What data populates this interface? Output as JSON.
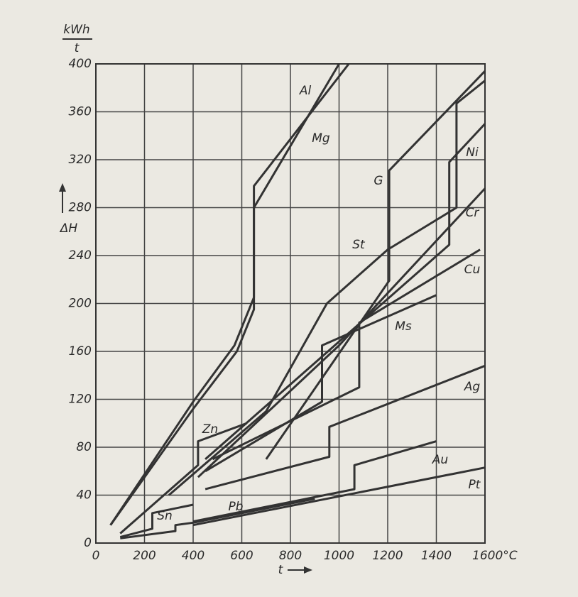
{
  "chart_data": {
    "type": "line",
    "y_unit_numerator": "kWh",
    "y_unit_denominator": "t",
    "y_label": "ΔH",
    "x_label": "t",
    "xlim": [
      0,
      1600
    ],
    "ylim": [
      0,
      400
    ],
    "xticks": [
      0,
      200,
      400,
      600,
      800,
      1000,
      1200,
      1400,
      {
        "value": 1600,
        "label": "1600°C"
      }
    ],
    "yticks": [
      0,
      40,
      80,
      120,
      160,
      200,
      240,
      280,
      320,
      360,
      400
    ],
    "grid": true,
    "series": [
      {
        "name": "Al",
        "color": "#333333",
        "x": [
          60,
          400,
          570,
          650,
          650,
          1000
        ],
        "values": [
          15,
          118,
          165,
          205,
          280,
          400
        ]
      },
      {
        "name": "Mg",
        "color": "#333333",
        "x": [
          60,
          400,
          580,
          650,
          650,
          1040
        ],
        "values": [
          15,
          112,
          160,
          195,
          298,
          400
        ]
      },
      {
        "name": "G",
        "color": "#333333",
        "x": [
          700,
          1206,
          1206,
          1600
        ],
        "values": [
          70,
          219,
          311,
          394
        ]
      },
      {
        "name": "Ni",
        "color": "#333333",
        "x": [
          450,
          1453,
          1453,
          1600
        ],
        "values": [
          70,
          249,
          318,
          350
        ]
      },
      {
        "name": "St",
        "color": "#333333",
        "x": [
          300,
          700,
          950,
          1200,
          1483,
          1483,
          1600
        ],
        "values": [
          40,
          110,
          200,
          245,
          280,
          367,
          386
        ]
      },
      {
        "name": "Cr",
        "color": "#333333",
        "x": [
          420,
          1000,
          1600
        ],
        "values": [
          55,
          165,
          296
        ]
      },
      {
        "name": "Cu",
        "color": "#333333",
        "x": [
          480,
          1083,
          1083,
          1580
        ],
        "values": [
          70,
          130,
          184,
          245
        ]
      },
      {
        "name": "Ms",
        "color": "#333333",
        "x": [
          450,
          930,
          930,
          1400
        ],
        "values": [
          60,
          118,
          165,
          207
        ]
      },
      {
        "name": "Zn",
        "color": "#333333",
        "x": [
          100,
          420,
          420,
          620
        ],
        "values": [
          8,
          65,
          85,
          100
        ]
      },
      {
        "name": "Ag",
        "color": "#333333",
        "x": [
          450,
          960,
          960,
          1600
        ],
        "values": [
          45,
          72,
          97,
          148
        ]
      },
      {
        "name": "Au",
        "color": "#333333",
        "x": [
          400,
          1063,
          1063,
          1400
        ],
        "values": [
          18,
          45,
          65,
          85
        ]
      },
      {
        "name": "Sn",
        "color": "#333333",
        "x": [
          100,
          232,
          232,
          400
        ],
        "values": [
          5,
          12,
          25,
          32
        ]
      },
      {
        "name": "Pb",
        "color": "#333333",
        "x": [
          100,
          327,
          327,
          400,
          900
        ],
        "values": [
          4,
          10,
          15,
          17,
          37
        ]
      },
      {
        "name": "Pt",
        "color": "#333333",
        "x": [
          400,
          1600
        ],
        "values": [
          15,
          63
        ]
      }
    ]
  }
}
